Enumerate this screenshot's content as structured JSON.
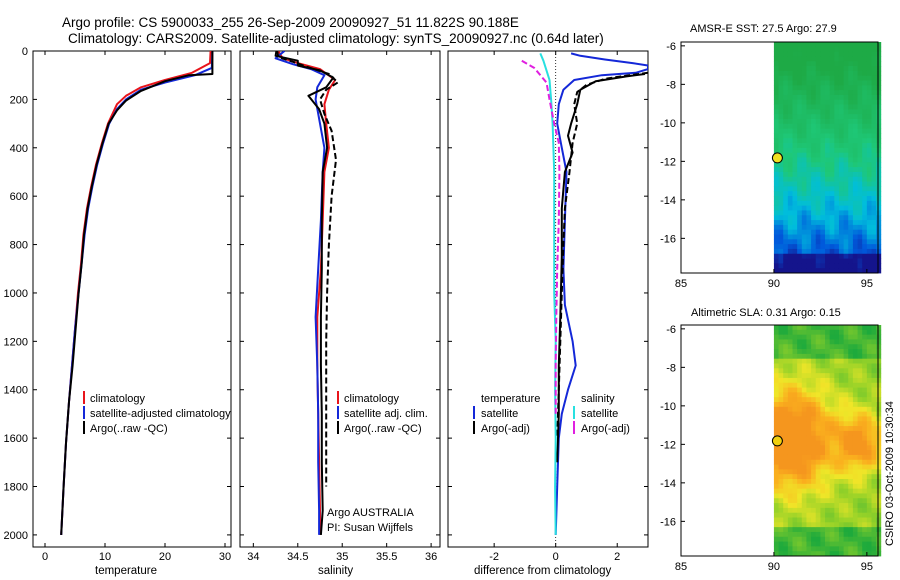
{
  "header": {
    "title_line1": "Argo profile: CS 5900033_255 26-Sep-2009 20090927_51 11.822S 90.188E",
    "title_line2": "Climatology: CARS2009. Satellite-adjusted climatology: synTS_20090927.nc (0.64d later)"
  },
  "side_note": "CSIRO 03-Oct-2009 10:30:34",
  "colors": {
    "climatology": "#e8141b",
    "satellite": "#1428d8",
    "argo": "#000000",
    "cyan": "#28e0e0",
    "magenta": "#e020e0"
  },
  "chart_data": [
    {
      "type": "line",
      "xlabel": "temperature",
      "xlim": [
        -2,
        31
      ],
      "ylim": [
        2050,
        0
      ],
      "xticks": [
        "0",
        "10",
        "20",
        "30"
      ],
      "yticks": [
        "0",
        "200",
        "400",
        "600",
        "800",
        "1000",
        "1200",
        "1400",
        "1600",
        "1800",
        "2000"
      ],
      "legend": [
        "climatology",
        "satellite-adjusted climatology",
        "Argo(..raw -QC)"
      ],
      "legend_placement": "lower right",
      "series": [
        {
          "name": "climatology",
          "color": "climatology",
          "dash": false,
          "points": [
            [
              27.6,
              0
            ],
            [
              27.5,
              50
            ],
            [
              24.5,
              90
            ],
            [
              20,
              120
            ],
            [
              16,
              150
            ],
            [
              13.5,
              185
            ],
            [
              12,
              220
            ],
            [
              10.5,
              300
            ],
            [
              9.5,
              380
            ],
            [
              8.5,
              470
            ],
            [
              7.7,
              560
            ],
            [
              7.0,
              650
            ],
            [
              6.4,
              760
            ],
            [
              6.0,
              880
            ],
            [
              5.5,
              1000
            ],
            [
              5.0,
              1150
            ],
            [
              4.5,
              1300
            ],
            [
              4.0,
              1450
            ],
            [
              3.5,
              1620
            ],
            [
              3.1,
              1800
            ],
            [
              2.7,
              2000
            ]
          ]
        },
        {
          "name": "satellite-adjusted climatology",
          "color": "satellite",
          "dash": false,
          "points": [
            [
              27.9,
              0
            ],
            [
              27.8,
              70
            ],
            [
              25,
              100
            ],
            [
              20,
              130
            ],
            [
              16,
              160
            ],
            [
              13.5,
              200
            ],
            [
              12,
              240
            ],
            [
              10.7,
              300
            ],
            [
              9.7,
              380
            ],
            [
              8.7,
              470
            ],
            [
              7.9,
              560
            ],
            [
              7.2,
              650
            ],
            [
              6.6,
              760
            ],
            [
              6.1,
              880
            ],
            [
              5.6,
              1000
            ],
            [
              5.0,
              1150
            ],
            [
              4.5,
              1300
            ],
            [
              4.0,
              1450
            ],
            [
              3.5,
              1620
            ],
            [
              3.1,
              1800
            ],
            [
              2.7,
              2000
            ]
          ]
        },
        {
          "name": "Argo(..raw -QC)",
          "color": "argo",
          "dash": false,
          "points": [
            [
              27.9,
              0
            ],
            [
              27.9,
              95
            ],
            [
              24,
              100
            ],
            [
              20,
              125
            ],
            [
              16,
              165
            ],
            [
              13.5,
              205
            ],
            [
              12,
              245
            ],
            [
              10.6,
              300
            ],
            [
              9.6,
              380
            ],
            [
              8.6,
              470
            ],
            [
              7.8,
              560
            ],
            [
              7.1,
              650
            ],
            [
              6.5,
              760
            ],
            [
              6.1,
              880
            ],
            [
              5.6,
              1000
            ],
            [
              5.1,
              1150
            ],
            [
              4.6,
              1300
            ],
            [
              4.0,
              1450
            ],
            [
              3.5,
              1620
            ],
            [
              3.1,
              1800
            ],
            [
              2.7,
              2000
            ]
          ]
        }
      ]
    },
    {
      "type": "line",
      "xlabel": "salinity",
      "xlim": [
        33.85,
        36.1
      ],
      "ylim": [
        2050,
        0
      ],
      "xticks": [
        "34",
        "34.5",
        "35",
        "35.5",
        "36"
      ],
      "legend": [
        "climatology",
        "satellite adj. clim.",
        "Argo(..raw -QC)"
      ],
      "legend_placement": "lower right",
      "annotation_line1": "Argo AUSTRALIA",
      "annotation_line2": "PI: Susan Wijffels",
      "series": [
        {
          "name": "climatology",
          "color": "climatology",
          "dash": false,
          "points": [
            [
              34.28,
              0
            ],
            [
              34.33,
              30
            ],
            [
              34.5,
              50
            ],
            [
              34.75,
              75
            ],
            [
              34.92,
              120
            ],
            [
              34.85,
              160
            ],
            [
              34.8,
              220
            ],
            [
              34.82,
              300
            ],
            [
              34.85,
              400
            ],
            [
              34.8,
              500
            ],
            [
              34.78,
              700
            ],
            [
              34.76,
              900
            ],
            [
              34.72,
              1100
            ],
            [
              34.72,
              1300
            ],
            [
              34.73,
              1500
            ],
            [
              34.74,
              1700
            ],
            [
              34.75,
              1900
            ],
            [
              34.75,
              2000
            ]
          ]
        },
        {
          "name": "satellite adj. clim.",
          "color": "satellite",
          "dash": false,
          "points": [
            [
              34.35,
              0
            ],
            [
              34.25,
              30
            ],
            [
              34.45,
              55
            ],
            [
              34.65,
              75
            ],
            [
              34.8,
              100
            ],
            [
              34.72,
              150
            ],
            [
              34.7,
              200
            ],
            [
              34.75,
              300
            ],
            [
              34.8,
              400
            ],
            [
              34.78,
              500
            ],
            [
              34.76,
              700
            ],
            [
              34.73,
              900
            ],
            [
              34.7,
              1100
            ],
            [
              34.72,
              1300
            ],
            [
              34.73,
              1500
            ],
            [
              34.73,
              1700
            ],
            [
              34.74,
              1900
            ],
            [
              34.74,
              2000
            ]
          ]
        },
        {
          "name": "Argo(..raw -QC)",
          "color": "argo",
          "dash": false,
          "points": [
            [
              34.26,
              0
            ],
            [
              34.25,
              20
            ],
            [
              34.5,
              40
            ],
            [
              34.5,
              60
            ],
            [
              34.75,
              80
            ],
            [
              34.9,
              110
            ],
            [
              34.82,
              150
            ],
            [
              34.62,
              185
            ],
            [
              34.74,
              240
            ],
            [
              34.8,
              300
            ],
            [
              34.83,
              400
            ],
            [
              34.78,
              500
            ],
            [
              34.77,
              700
            ],
            [
              34.77,
              900
            ],
            [
              34.76,
              1100
            ],
            [
              34.76,
              1300
            ],
            [
              34.77,
              1500
            ],
            [
              34.77,
              1700
            ],
            [
              34.78,
              1900
            ],
            [
              34.76,
              2000
            ]
          ]
        },
        {
          "name": "Argo(-adj)",
          "color": "argo",
          "dash": true,
          "points": [
            [
              34.27,
              0
            ],
            [
              34.28,
              25
            ],
            [
              34.45,
              45
            ],
            [
              34.6,
              65
            ],
            [
              34.85,
              95
            ],
            [
              34.95,
              130
            ],
            [
              34.82,
              160
            ],
            [
              34.75,
              200
            ],
            [
              34.8,
              260
            ],
            [
              34.88,
              330
            ],
            [
              34.93,
              450
            ],
            [
              34.88,
              600
            ],
            [
              34.85,
              800
            ],
            [
              34.83,
              1000
            ],
            [
              34.82,
              1200
            ],
            [
              34.82,
              1400
            ],
            [
              34.82,
              1600
            ],
            [
              34.82,
              1800
            ]
          ]
        }
      ]
    },
    {
      "type": "line",
      "xlabel": "difference from climatology",
      "xlim": [
        -3.5,
        3.0
      ],
      "ylim": [
        2050,
        0
      ],
      "xticks": [
        "-2",
        "0",
        "2"
      ],
      "legend_left_title": "temperature",
      "legend_left": [
        "satellite",
        "Argo(-adj)"
      ],
      "legend_right_title": "salinity",
      "legend_right": [
        "satellite",
        "Argo(-adj)"
      ],
      "legend_placement": "lower center",
      "series": [
        {
          "name": "temperature satellite",
          "color": "satellite",
          "dash": false,
          "points": [
            [
              0.5,
              10
            ],
            [
              0.8,
              20
            ],
            [
              1.6,
              35
            ],
            [
              2.5,
              50
            ],
            [
              3.0,
              60
            ],
            [
              3.0,
              75
            ],
            [
              2.6,
              90
            ],
            [
              1.5,
              100
            ],
            [
              0.6,
              120
            ],
            [
              0.25,
              160
            ],
            [
              0.1,
              220
            ],
            [
              0.05,
              300
            ],
            [
              0.2,
              400
            ],
            [
              0.35,
              500
            ],
            [
              0.3,
              700
            ],
            [
              0.25,
              900
            ],
            [
              0.3,
              1050
            ],
            [
              0.55,
              1200
            ],
            [
              0.65,
              1300
            ],
            [
              0.4,
              1400
            ],
            [
              0.2,
              1500
            ],
            [
              0.1,
              1600
            ],
            [
              0.05,
              1800
            ],
            [
              0.0,
              2000
            ]
          ]
        },
        {
          "name": "temperature Argo(-adj)",
          "color": "argo",
          "dash": false,
          "points": [
            [
              2.9,
              95
            ],
            [
              2.3,
              105
            ],
            [
              1.3,
              125
            ],
            [
              0.8,
              160
            ],
            [
              0.7,
              220
            ],
            [
              0.5,
              300
            ],
            [
              0.4,
              350
            ],
            [
              0.55,
              420
            ],
            [
              0.3,
              500
            ],
            [
              0.2,
              650
            ],
            [
              0.2,
              850
            ],
            [
              0.15,
              1100
            ],
            [
              0.1,
              1300
            ],
            [
              0.1,
              1500
            ],
            [
              0.05,
              1700
            ]
          ]
        },
        {
          "name": "temperature Argo(-adj) dashed",
          "color": "argo",
          "dash": true,
          "points": [
            [
              3.0,
              90
            ],
            [
              2.4,
              100
            ],
            [
              1.6,
              115
            ],
            [
              1.0,
              140
            ],
            [
              0.7,
              170
            ],
            [
              0.6,
              220
            ],
            [
              0.7,
              300
            ],
            [
              0.55,
              380
            ],
            [
              0.45,
              500
            ],
            [
              0.3,
              650
            ],
            [
              0.25,
              800
            ],
            [
              0.2,
              1000
            ],
            [
              0.15,
              1200
            ],
            [
              0.1,
              1400
            ],
            [
              0.05,
              1600
            ]
          ]
        },
        {
          "name": "salinity satellite",
          "color": "cyan",
          "dash": false,
          "points": [
            [
              -0.5,
              10
            ],
            [
              -0.4,
              40
            ],
            [
              -0.3,
              80
            ],
            [
              -0.2,
              120
            ],
            [
              -0.15,
              200
            ],
            [
              -0.1,
              300
            ],
            [
              -0.05,
              500
            ],
            [
              -0.05,
              800
            ],
            [
              -0.05,
              1000
            ],
            [
              0.0,
              1200
            ],
            [
              -0.02,
              1400
            ],
            [
              0.0,
              1600
            ],
            [
              -0.02,
              1800
            ],
            [
              0.0,
              2000
            ]
          ]
        },
        {
          "name": "salinity Argo(-adj)",
          "color": "magenta",
          "dash": true,
          "points": [
            [
              -1.1,
              40
            ],
            [
              -0.7,
              70
            ],
            [
              -0.3,
              130
            ],
            [
              -0.2,
              200
            ],
            [
              -0.05,
              300
            ],
            [
              0.1,
              380
            ],
            [
              0.12,
              500
            ],
            [
              0.1,
              700
            ],
            [
              0.05,
              900
            ],
            [
              0.02,
              1100
            ],
            [
              0.0,
              1300
            ],
            [
              0.0,
              1500
            ]
          ]
        }
      ]
    },
    {
      "type": "heatmap",
      "title": "AMSR-E SST: 27.5 Argo: 27.9",
      "xlim": [
        85,
        95.6
      ],
      "ylim": [
        -17.8,
        -5.8
      ],
      "xticks": [
        "85",
        "90",
        "95"
      ],
      "yticks": [
        "-6",
        "-8",
        "-10",
        "-12",
        "-14",
        "-16"
      ],
      "data_x_range": [
        90,
        95.6
      ],
      "marker": [
        90.188,
        -11.822
      ]
    },
    {
      "type": "heatmap",
      "title": "Altimetric SLA: 0.31 Argo: 0.15",
      "xlim": [
        85,
        95.6
      ],
      "ylim": [
        -17.8,
        -5.8
      ],
      "xticks": [
        "85",
        "90",
        "95"
      ],
      "yticks": [
        "-6",
        "-8",
        "-10",
        "-12",
        "-14",
        "-16"
      ],
      "data_x_range": [
        90,
        95.6
      ],
      "marker": [
        90.188,
        -11.822
      ]
    }
  ]
}
